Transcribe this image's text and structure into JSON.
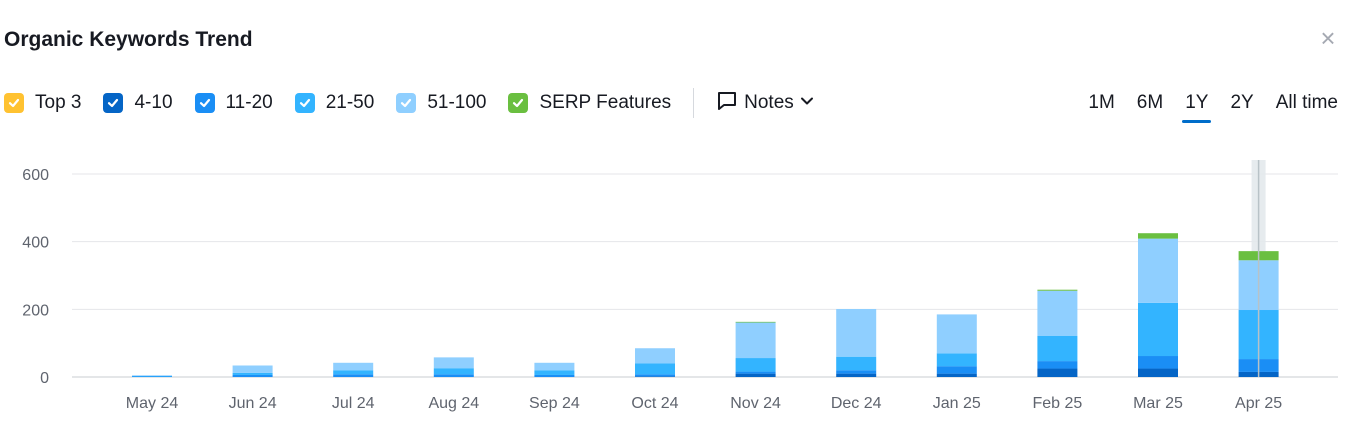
{
  "header": {
    "title": "Organic Keywords Trend"
  },
  "legend": [
    {
      "label": "Top 3",
      "color": "#ffc231"
    },
    {
      "label": "4-10",
      "color": "#0565c6"
    },
    {
      "label": "11-20",
      "color": "#1a8ef5"
    },
    {
      "label": "21-50",
      "color": "#33b4ff"
    },
    {
      "label": "51-100",
      "color": "#8fcfff"
    },
    {
      "label": "SERP Features",
      "color": "#6abf40"
    }
  ],
  "notes": {
    "label": "Notes"
  },
  "periods": [
    {
      "label": "1M",
      "active": false
    },
    {
      "label": "6M",
      "active": false
    },
    {
      "label": "1Y",
      "active": true
    },
    {
      "label": "2Y",
      "active": false
    },
    {
      "label": "All time",
      "active": false
    }
  ],
  "chart_data": {
    "type": "bar",
    "stacked": true,
    "categories": [
      "May 24",
      "Jun 24",
      "Jul 24",
      "Aug 24",
      "Sep 24",
      "Oct 24",
      "Nov 24",
      "Dec 24",
      "Jan 25",
      "Feb 25",
      "Mar 25",
      "Apr 25"
    ],
    "ylim": [
      0,
      600
    ],
    "yticks": [
      0,
      200,
      400,
      600
    ],
    "grid": true,
    "legend_position": "top-left",
    "highlighted_category": "Apr 25",
    "series": [
      {
        "name": "Top 3",
        "color": "#ffc231",
        "values": [
          0,
          0,
          0,
          0,
          0,
          0,
          0,
          0,
          0,
          0,
          0,
          0
        ]
      },
      {
        "name": "4-10",
        "color": "#0565c6",
        "values": [
          0,
          0,
          0,
          0,
          0,
          2,
          10,
          10,
          10,
          25,
          25,
          15
        ]
      },
      {
        "name": "11-20",
        "color": "#1a8ef5",
        "values": [
          2,
          6,
          8,
          8,
          6,
          6,
          6,
          10,
          22,
          22,
          37,
          38
        ]
      },
      {
        "name": "21-50",
        "color": "#33b4ff",
        "values": [
          1,
          6,
          12,
          18,
          14,
          32,
          40,
          40,
          38,
          75,
          157,
          145
        ]
      },
      {
        "name": "51-100",
        "color": "#8fcfff",
        "values": [
          2,
          22,
          22,
          32,
          22,
          45,
          105,
          141,
          115,
          133,
          190,
          147
        ]
      },
      {
        "name": "SERP Features",
        "color": "#6abf40",
        "values": [
          0,
          0,
          0,
          0,
          0,
          0,
          2,
          0,
          0,
          3,
          16,
          27
        ]
      }
    ]
  }
}
